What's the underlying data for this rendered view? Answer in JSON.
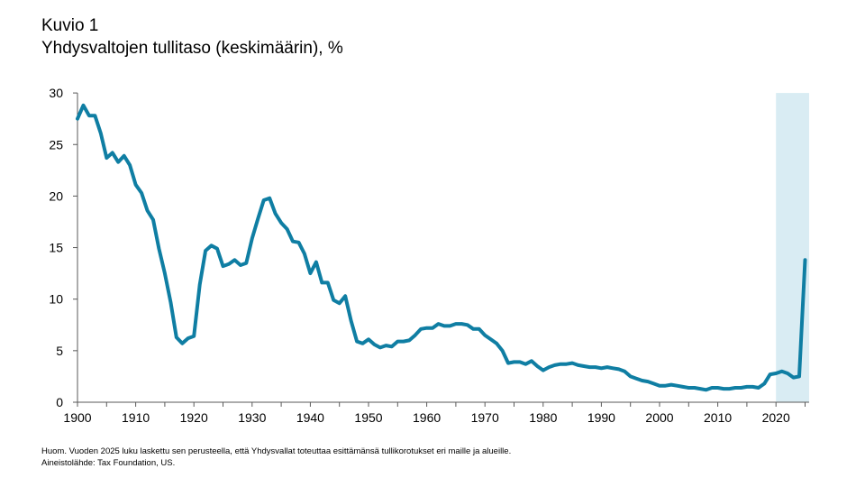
{
  "header": {
    "figure_label": "Kuvio 1",
    "title": "Yhdysvaltojen tullitaso (keskimäärin), %"
  },
  "notes": {
    "note": "Huom. Vuoden 2025 luku laskettu sen perusteella, että Yhdysvallat toteuttaa esittämänsä tullikorotukset eri maille ja alueille.",
    "source": "Aineistolähde: Tax Foundation, US."
  },
  "chart_data": {
    "type": "line",
    "title": "Yhdysvaltojen tullitaso (keskimäärin), %",
    "xlabel": "",
    "ylabel": "",
    "xlim": [
      1900,
      2026
    ],
    "ylim": [
      0,
      30
    ],
    "x_ticks": [
      "1900",
      "1910",
      "1920",
      "1930",
      "1940",
      "1950",
      "1960",
      "1970",
      "1980",
      "1990",
      "2000",
      "2010",
      "2020"
    ],
    "y_ticks": [
      "0",
      "5",
      "10",
      "15",
      "20",
      "25",
      "30"
    ],
    "grid": false,
    "line_color": "#0f7ea3",
    "highlight": {
      "from": 2020,
      "to": 2026,
      "color": "#d9ecf3"
    },
    "series": [
      {
        "x": [
          1900,
          1901,
          1902,
          1903,
          1904,
          1905,
          1906,
          1907,
          1908,
          1909,
          1910,
          1911,
          1912,
          1913,
          1914,
          1915,
          1916,
          1917,
          1918,
          1919,
          1920,
          1921,
          1922,
          1923,
          1924,
          1925,
          1926,
          1927,
          1928,
          1929,
          1930,
          1931,
          1932,
          1933,
          1934,
          1935,
          1936,
          1937,
          1938,
          1939,
          1940,
          1941,
          1942,
          1943,
          1944,
          1945,
          1946,
          1947,
          1948,
          1949,
          1950,
          1951,
          1952,
          1953,
          1954,
          1955,
          1956,
          1957,
          1958,
          1959,
          1960,
          1961,
          1962,
          1963,
          1964,
          1965,
          1966,
          1967,
          1968,
          1969,
          1970,
          1971,
          1972,
          1973,
          1974,
          1975,
          1976,
          1977,
          1978,
          1979,
          1980,
          1981,
          1982,
          1983,
          1984,
          1985,
          1986,
          1987,
          1988,
          1989,
          1990,
          1991,
          1992,
          1993,
          1994,
          1995,
          1996,
          1997,
          1998,
          1999,
          2000,
          2001,
          2002,
          2003,
          2004,
          2005,
          2006,
          2007,
          2008,
          2009,
          2010,
          2011,
          2012,
          2013,
          2014,
          2015,
          2016,
          2017,
          2018,
          2019,
          2020,
          2021,
          2022,
          2023,
          2024,
          2025
        ],
        "values": [
          27.5,
          28.8,
          27.8,
          27.8,
          26.1,
          23.7,
          24.2,
          23.3,
          23.9,
          23.0,
          21.1,
          20.3,
          18.6,
          17.7,
          14.9,
          12.5,
          9.7,
          6.3,
          5.7,
          6.2,
          6.4,
          11.4,
          14.7,
          15.2,
          14.9,
          13.2,
          13.4,
          13.8,
          13.3,
          13.5,
          15.9,
          17.8,
          19.6,
          19.8,
          18.3,
          17.4,
          16.8,
          15.6,
          15.5,
          14.4,
          12.5,
          13.6,
          11.6,
          11.6,
          9.9,
          9.6,
          10.3,
          7.9,
          5.9,
          5.7,
          6.1,
          5.6,
          5.3,
          5.5,
          5.4,
          5.9,
          5.9,
          6.0,
          6.5,
          7.1,
          7.2,
          7.2,
          7.6,
          7.4,
          7.4,
          7.6,
          7.6,
          7.5,
          7.1,
          7.1,
          6.5,
          6.1,
          5.7,
          5.0,
          3.8,
          3.9,
          3.9,
          3.7,
          4.0,
          3.5,
          3.1,
          3.4,
          3.6,
          3.7,
          3.7,
          3.8,
          3.6,
          3.5,
          3.4,
          3.4,
          3.3,
          3.4,
          3.3,
          3.2,
          3.0,
          2.5,
          2.3,
          2.1,
          2.0,
          1.8,
          1.6,
          1.6,
          1.7,
          1.6,
          1.5,
          1.4,
          1.4,
          1.3,
          1.2,
          1.4,
          1.4,
          1.3,
          1.3,
          1.4,
          1.4,
          1.5,
          1.5,
          1.4,
          1.8,
          2.7,
          2.8,
          3.0,
          2.8,
          2.4,
          2.5,
          13.8
        ]
      }
    ]
  }
}
